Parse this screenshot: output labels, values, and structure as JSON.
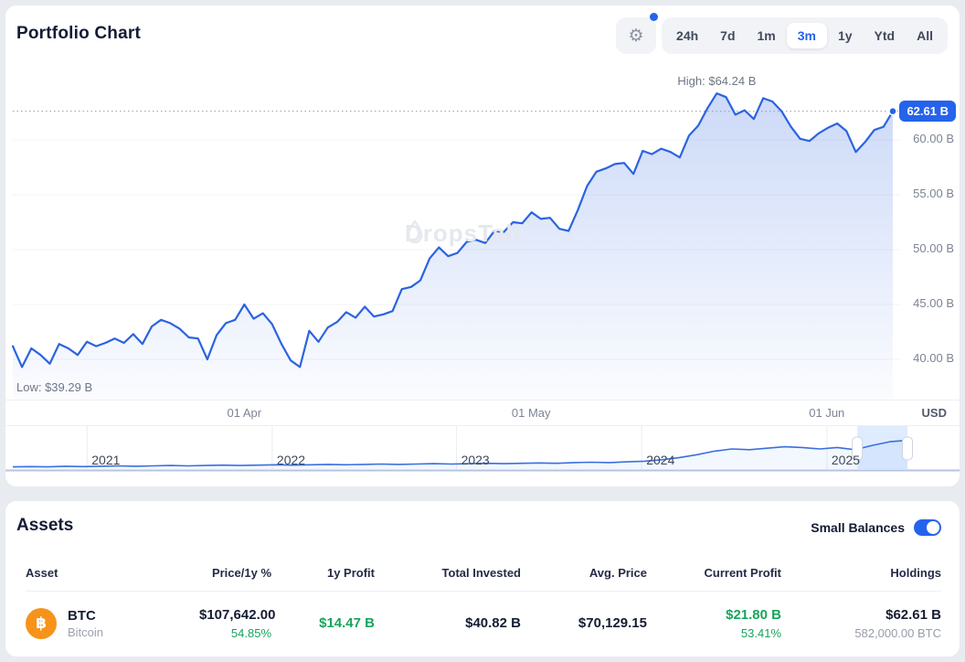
{
  "header": {
    "title": "Portfolio Chart",
    "ranges": [
      "24h",
      "7d",
      "1m",
      "3m",
      "1y",
      "Ytd",
      "All"
    ],
    "selected_range": "3m",
    "has_settings_notification": true
  },
  "chart_data": {
    "type": "area",
    "title": "Portfolio Chart",
    "unit": "USD",
    "high": 64.24,
    "low": 39.29,
    "current": 62.61,
    "high_label": "High: $64.24 B",
    "low_label": "Low: $39.29 B",
    "current_label": "62.61 B",
    "line_color": "#2b63e0",
    "badge_color": "#2563eb",
    "ylim": [
      38.5,
      65.8
    ],
    "y_ticks": [
      {
        "value": 60,
        "label": "60.00 B"
      },
      {
        "value": 55,
        "label": "55.00 B"
      },
      {
        "value": 50,
        "label": "50.00 B"
      },
      {
        "value": 45,
        "label": "45.00 B"
      },
      {
        "value": 40,
        "label": "40.00 B"
      }
    ],
    "x_ticks": [
      {
        "label": "01 Apr",
        "pos": 0.263
      },
      {
        "label": "01 May",
        "pos": 0.589
      },
      {
        "label": "01 Jun",
        "pos": 0.925
      }
    ],
    "series": [
      41.2,
      39.3,
      41.0,
      40.4,
      39.6,
      41.4,
      41.0,
      40.4,
      41.6,
      41.2,
      41.5,
      41.9,
      41.5,
      42.3,
      41.4,
      43.0,
      43.6,
      43.3,
      42.8,
      42.0,
      41.9,
      40.0,
      42.2,
      43.3,
      43.6,
      45.0,
      43.7,
      44.2,
      43.2,
      41.4,
      39.9,
      39.3,
      42.6,
      41.6,
      42.9,
      43.4,
      44.3,
      43.8,
      44.8,
      43.9,
      44.1,
      44.4,
      46.4,
      46.6,
      47.2,
      49.2,
      50.2,
      49.4,
      49.7,
      50.7,
      50.9,
      50.6,
      51.7,
      51.6,
      52.5,
      52.4,
      53.4,
      52.8,
      52.9,
      51.9,
      51.7,
      53.6,
      55.8,
      57.1,
      57.4,
      57.8,
      57.9,
      56.9,
      59.0,
      58.7,
      59.2,
      58.9,
      58.4,
      60.4,
      61.3,
      62.9,
      64.24,
      63.9,
      62.3,
      62.7,
      61.9,
      63.8,
      63.5,
      62.6,
      61.2,
      60.1,
      59.9,
      60.6,
      61.1,
      61.5,
      60.8,
      58.9,
      59.8,
      60.9,
      61.2,
      62.61
    ],
    "navigator": {
      "years": [
        {
          "label": "2021",
          "pos": 0.083
        },
        {
          "label": "2022",
          "pos": 0.29
        },
        {
          "label": "2023",
          "pos": 0.496
        },
        {
          "label": "2024",
          "pos": 0.703
        },
        {
          "label": "2025",
          "pos": 0.91
        }
      ],
      "values": [
        3,
        3.5,
        3,
        4,
        3.5,
        4,
        4.5,
        4,
        4.5,
        5,
        4.5,
        5,
        5.5,
        5,
        5.5,
        6,
        5.5,
        6,
        6.5,
        6,
        6.5,
        7,
        6.5,
        7,
        7.5,
        7,
        7.5,
        8,
        7.5,
        8,
        8.5,
        8,
        9,
        9.5,
        9,
        10,
        11,
        13,
        16,
        20,
        25,
        28,
        27,
        29,
        31,
        30,
        28,
        30,
        27,
        33,
        38,
        40
      ],
      "ymax": 56,
      "brush": [
        0.944,
        1.0
      ]
    },
    "watermark": "DropsTab"
  },
  "assets": {
    "title": "Assets",
    "small_balances_label": "Small Balances",
    "small_balances_on": true,
    "columns": [
      "Asset",
      "Price/1y %",
      "1y Profit",
      "Total Invested",
      "Avg. Price",
      "Current Profit",
      "Holdings"
    ],
    "rows": [
      {
        "symbol": "BTC",
        "name": "Bitcoin",
        "icon": "฿",
        "icon_color": "#f7931a",
        "price": "$107,642.00",
        "price_change_1y": "54.85%",
        "profit_1y": "$14.47 B",
        "total_invested": "$40.82 B",
        "avg_price": "$70,129.15",
        "current_profit": "$21.80 B",
        "current_profit_pct": "53.41%",
        "holdings_value": "$62.61 B",
        "holdings_amount": "582,000.00 BTC"
      }
    ]
  }
}
